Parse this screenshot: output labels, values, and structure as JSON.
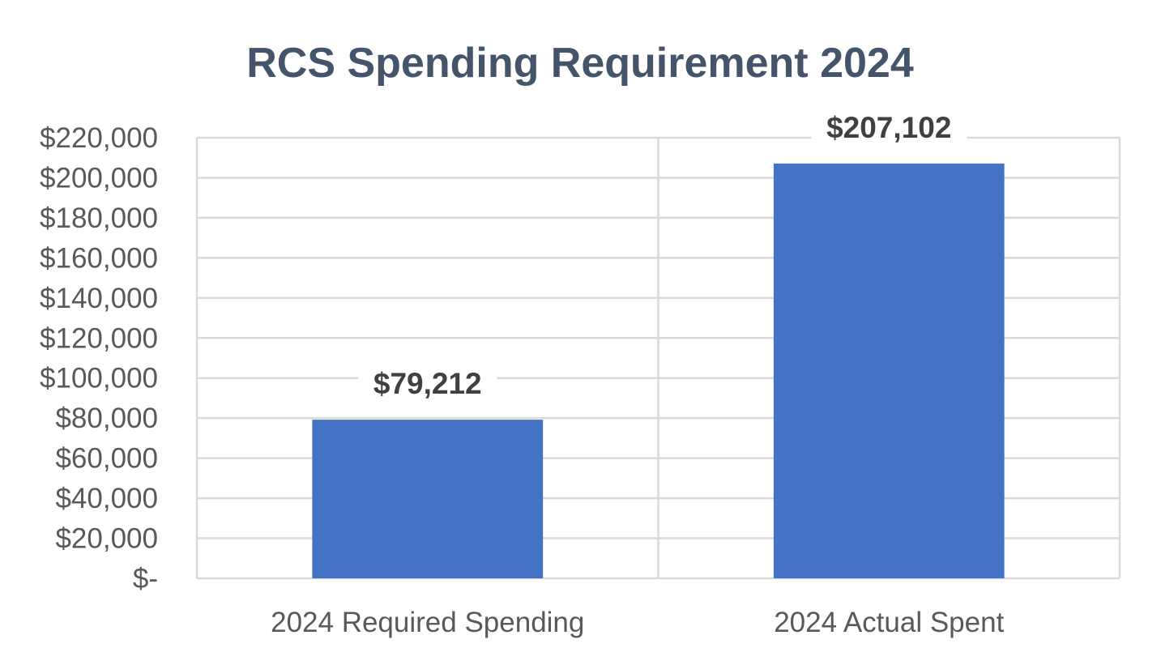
{
  "chart_data": {
    "type": "bar",
    "title": "RCS Spending Requirement 2024",
    "categories": [
      "2024 Required Spending",
      "2024 Actual Spent"
    ],
    "values": [
      79212,
      207102
    ],
    "data_labels": [
      "$79,212",
      "$207,102"
    ],
    "xlabel": "",
    "ylabel": "",
    "ylim": [
      0,
      220000
    ],
    "y_ticks": [
      0,
      20000,
      40000,
      60000,
      80000,
      100000,
      120000,
      140000,
      160000,
      180000,
      200000,
      220000
    ],
    "y_tick_labels": [
      "$-",
      "$20,000",
      "$40,000",
      "$60,000",
      "$80,000",
      "$100,000",
      "$120,000",
      "$140,000",
      "$160,000",
      "$180,000",
      "$200,000",
      "$220,000"
    ],
    "grid": true,
    "legend": "none"
  },
  "colors": {
    "bar": "#4472C4",
    "title": "#44546A",
    "tick_text": "#595959",
    "data_label": "#404040",
    "grid": "#D9D9D9"
  }
}
